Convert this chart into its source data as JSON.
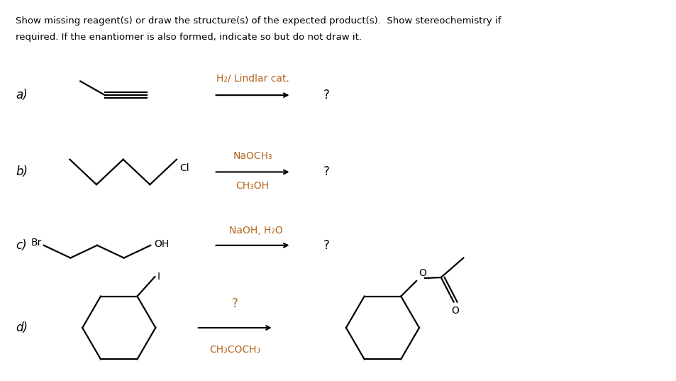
{
  "bg_color": "#ffffff",
  "text_color": "#000000",
  "reagent_color": "#b5651d",
  "fig_width": 9.54,
  "fig_height": 5.37,
  "dpi": 100,
  "header_text1": "Show missing reagent(s) or draw the structure(s) of the expected product(s).  Show stereochemistry if",
  "header_text2": "required. If the enantiomer is also formed, indicate so but do not draw it.",
  "labels": [
    "a)",
    "b)",
    "c)",
    "d)"
  ],
  "label_fontsize": 12,
  "body_fontsize": 10,
  "mol_fontsize": 10,
  "reagent_fontsize": 10,
  "lw_mol": 1.6
}
